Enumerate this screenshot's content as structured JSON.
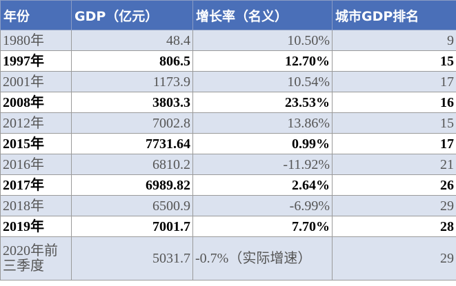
{
  "table": {
    "header": [
      "年份",
      "GDP（亿元）",
      "增长率（名义）",
      "城市GDP排名"
    ],
    "rows": [
      [
        "1980年",
        "48.4",
        "10.50%",
        "9"
      ],
      [
        "1997年",
        "806.5",
        "12.70%",
        "15"
      ],
      [
        "2001年",
        "1173.9",
        "10.54%",
        "17"
      ],
      [
        "2008年",
        "3803.3",
        "23.53%",
        "16"
      ],
      [
        "2012年",
        "7002.8",
        "13.86%",
        "15"
      ],
      [
        "2015年",
        "7731.64",
        "0.99%",
        "17"
      ],
      [
        "2016年",
        "6810.2",
        "-11.92%",
        "21"
      ],
      [
        "2017年",
        "6989.82",
        "2.64%",
        "26"
      ],
      [
        "2018年",
        "6500.9",
        "-6.99%",
        "29"
      ],
      [
        "2019年",
        "7001.7",
        "7.70%",
        "28"
      ],
      [
        "2020年前三季度",
        "5031.7",
        "-0.7%（实际增速）",
        "29"
      ]
    ]
  }
}
